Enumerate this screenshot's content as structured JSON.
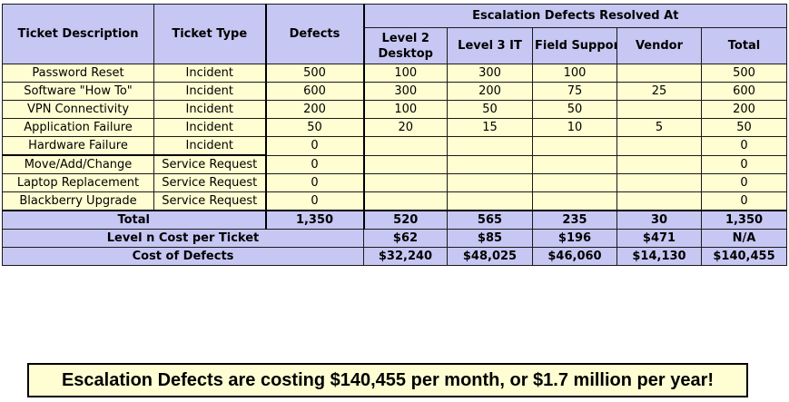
{
  "headers": {
    "ticket_description": "Ticket Description",
    "ticket_type": "Ticket Type",
    "defects": "Defects",
    "escalation_group": "Escalation Defects Resolved At",
    "level2": "Level 2 Desktop",
    "level3": "Level 3 IT",
    "field_support": "Field Support",
    "vendor": "Vendor",
    "total": "Total"
  },
  "rows": [
    {
      "desc": "Password Reset",
      "type": "Incident",
      "defects": "500",
      "l2": "100",
      "l3": "300",
      "fs": "100",
      "vendor": "",
      "total": "500"
    },
    {
      "desc": "Software \"How To\"",
      "type": "Incident",
      "defects": "600",
      "l2": "300",
      "l3": "200",
      "fs": "75",
      "vendor": "25",
      "total": "600"
    },
    {
      "desc": "VPN Connectivity",
      "type": "Incident",
      "defects": "200",
      "l2": "100",
      "l3": "50",
      "fs": "50",
      "vendor": "",
      "total": "200"
    },
    {
      "desc": "Application Failure",
      "type": "Incident",
      "defects": "50",
      "l2": "20",
      "l3": "15",
      "fs": "10",
      "vendor": "5",
      "total": "50"
    },
    {
      "desc": "Hardware Failure",
      "type": "Incident",
      "defects": "0",
      "l2": "",
      "l3": "",
      "fs": "",
      "vendor": "",
      "total": "0"
    },
    {
      "desc": "Move/Add/Change",
      "type": "Service Request",
      "defects": "0",
      "l2": "",
      "l3": "",
      "fs": "",
      "vendor": "",
      "total": "0"
    },
    {
      "desc": "Laptop Replacement",
      "type": "Service Request",
      "defects": "0",
      "l2": "",
      "l3": "",
      "fs": "",
      "vendor": "",
      "total": "0"
    },
    {
      "desc": "Blackberry Upgrade",
      "type": "Service Request",
      "defects": "0",
      "l2": "",
      "l3": "",
      "fs": "",
      "vendor": "",
      "total": "0"
    }
  ],
  "total_row": {
    "label": "Total",
    "defects": "1,350",
    "l2": "520",
    "l3": "565",
    "fs": "235",
    "vendor": "30",
    "total": "1,350"
  },
  "cost_per_ticket_row": {
    "label": "Level n Cost per Ticket",
    "l2": "$62",
    "l3": "$85",
    "fs": "$196",
    "vendor": "$471",
    "total": "N/A"
  },
  "cost_of_defects_row": {
    "label": "Cost of Defects",
    "l2": "$32,240",
    "l3": "$48,025",
    "fs": "$46,060",
    "vendor": "$14,130",
    "total": "$140,455"
  },
  "banner": "Escalation Defects are costing $140,455 per month, or $1.7 million per year!",
  "colors": {
    "header_fill": "#c7c7f4",
    "cell_fill": "#fefed2"
  }
}
